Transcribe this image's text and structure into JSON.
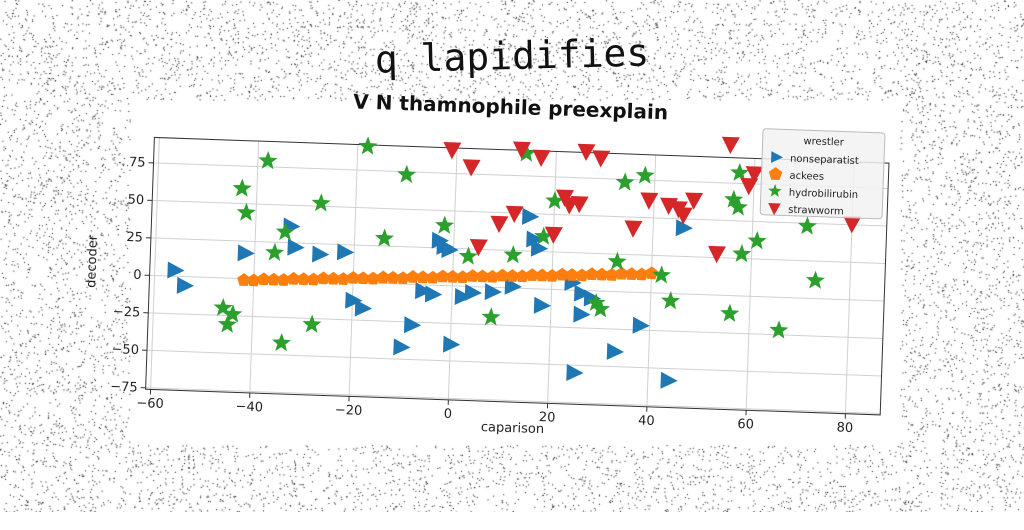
{
  "suptitle": "q lapidifies",
  "chart_data": {
    "type": "scatter",
    "title": "V N thamnophile preexplain",
    "xlabel": "caparison",
    "ylabel": "decoder",
    "xlim": [
      -61,
      87
    ],
    "ylim": [
      -76,
      92
    ],
    "xticks": [
      -60,
      -40,
      -20,
      0,
      20,
      40,
      60,
      80
    ],
    "yticks": [
      -75,
      -50,
      -25,
      0,
      25,
      50,
      75
    ],
    "grid": true,
    "legend": {
      "title": "wrestler",
      "placement": "top-right"
    },
    "series": [
      {
        "name": "nonseparatist",
        "marker": "triangle-right",
        "color": "#1f77b4",
        "points": [
          [
            -56,
            4
          ],
          [
            -54,
            -6
          ],
          [
            -42,
            17
          ],
          [
            -33,
            36
          ],
          [
            -32,
            22
          ],
          [
            -27,
            18
          ],
          [
            -22,
            20
          ],
          [
            -20,
            -12
          ],
          [
            -18,
            -17
          ],
          [
            -10,
            -42
          ],
          [
            -8,
            -27
          ],
          [
            -6,
            -4
          ],
          [
            -4,
            -6
          ],
          [
            -3,
            30
          ],
          [
            -2,
            26
          ],
          [
            -1,
            24
          ],
          [
            0,
            -39
          ],
          [
            2,
            -7
          ],
          [
            4,
            -4
          ],
          [
            8,
            -3
          ],
          [
            12,
            1
          ],
          [
            15,
            48
          ],
          [
            16,
            33
          ],
          [
            17,
            27
          ],
          [
            18,
            -11
          ],
          [
            24,
            5
          ],
          [
            25,
            -55
          ],
          [
            26,
            -2
          ],
          [
            26,
            -16
          ],
          [
            28,
            -5
          ],
          [
            33,
            -40
          ],
          [
            38,
            -22
          ],
          [
            44,
            -58
          ],
          [
            46,
            44
          ]
        ]
      },
      {
        "name": "ackees",
        "marker": "pentagon",
        "color": "#ff7f0e",
        "points": [
          [
            -42,
            -1
          ],
          [
            -40,
            -1
          ],
          [
            -38,
            0
          ],
          [
            -36,
            0
          ],
          [
            -34,
            0
          ],
          [
            -32,
            1
          ],
          [
            -30,
            1
          ],
          [
            -28,
            1
          ],
          [
            -26,
            2
          ],
          [
            -24,
            2
          ],
          [
            -22,
            2
          ],
          [
            -20,
            3
          ],
          [
            -18,
            3
          ],
          [
            -16,
            3
          ],
          [
            -14,
            4
          ],
          [
            -12,
            4
          ],
          [
            -10,
            4
          ],
          [
            -8,
            5
          ],
          [
            -6,
            5
          ],
          [
            -4,
            5
          ],
          [
            -2,
            6
          ],
          [
            0,
            6
          ],
          [
            2,
            6
          ],
          [
            4,
            7
          ],
          [
            6,
            7
          ],
          [
            8,
            7
          ],
          [
            10,
            8
          ],
          [
            12,
            8
          ],
          [
            14,
            8
          ],
          [
            16,
            9
          ],
          [
            18,
            9
          ],
          [
            20,
            9
          ],
          [
            22,
            10
          ],
          [
            24,
            10
          ],
          [
            26,
            10
          ],
          [
            28,
            11
          ],
          [
            30,
            11
          ],
          [
            32,
            11
          ],
          [
            34,
            12
          ],
          [
            36,
            12
          ],
          [
            38,
            12
          ],
          [
            40,
            13
          ]
        ]
      },
      {
        "name": "hydrobilirubin",
        "marker": "star",
        "color": "#2ca02c",
        "points": [
          [
            -46,
            -20
          ],
          [
            -45,
            -31
          ],
          [
            -44,
            -24
          ],
          [
            -43,
            60
          ],
          [
            -42,
            44
          ],
          [
            -38,
            79
          ],
          [
            -36,
            18
          ],
          [
            -34,
            32
          ],
          [
            -34,
            -42
          ],
          [
            -28,
            -29
          ],
          [
            -27,
            52
          ],
          [
            -18,
            91
          ],
          [
            -14,
            30
          ],
          [
            -10,
            73
          ],
          [
            -2,
            40
          ],
          [
            3,
            20
          ],
          [
            8,
            -20
          ],
          [
            12,
            22
          ],
          [
            14,
            90
          ],
          [
            18,
            35
          ],
          [
            20,
            59
          ],
          [
            29,
            -8
          ],
          [
            30,
            -12
          ],
          [
            33,
            20
          ],
          [
            34,
            73
          ],
          [
            38,
            78
          ],
          [
            42,
            12
          ],
          [
            44,
            -5
          ],
          [
            56,
            -12
          ],
          [
            56,
            64
          ],
          [
            57,
            59
          ],
          [
            57,
            82
          ],
          [
            58,
            28
          ],
          [
            61,
            37
          ],
          [
            66,
            -22
          ],
          [
            71,
            48
          ],
          [
            73,
            12
          ]
        ]
      },
      {
        "name": "strawworm",
        "marker": "triangle-down",
        "color": "#d62728",
        "points": [
          [
            -1,
            91
          ],
          [
            3,
            80
          ],
          [
            5,
            27
          ],
          [
            9,
            43
          ],
          [
            12,
            50
          ],
          [
            13,
            93
          ],
          [
            17,
            88
          ],
          [
            20,
            37
          ],
          [
            22,
            62
          ],
          [
            23,
            57
          ],
          [
            25,
            58
          ],
          [
            26,
            93
          ],
          [
            29,
            89
          ],
          [
            36,
            43
          ],
          [
            39,
            62
          ],
          [
            43,
            59
          ],
          [
            45,
            57
          ],
          [
            46,
            53
          ],
          [
            48,
            63
          ],
          [
            53,
            28
          ],
          [
            55,
            101
          ],
          [
            59,
            74
          ],
          [
            60,
            82
          ],
          [
            80,
            51
          ]
        ]
      }
    ]
  }
}
